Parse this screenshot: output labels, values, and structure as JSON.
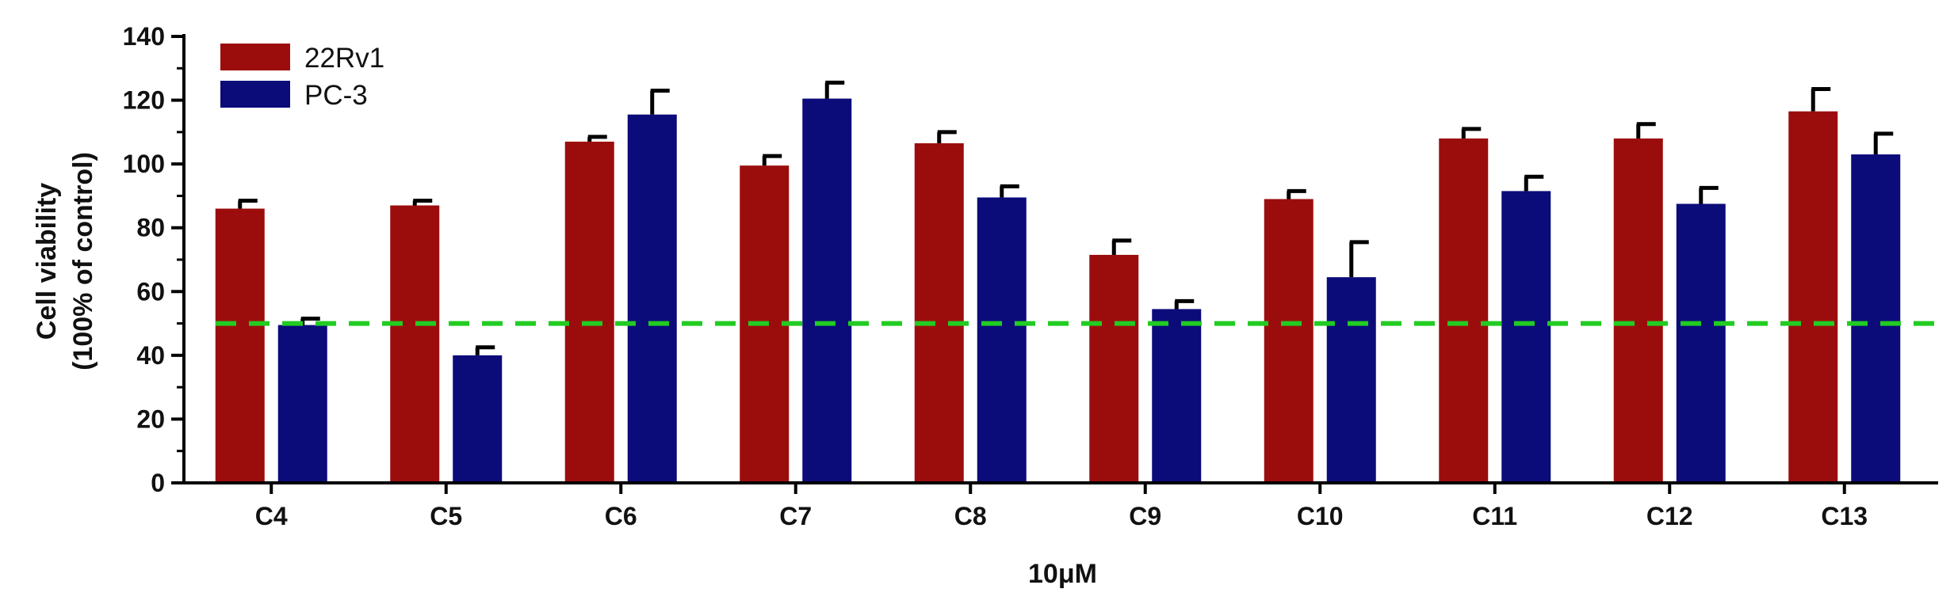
{
  "chart_data": {
    "type": "bar",
    "title": "",
    "xlabel": "10μM",
    "ylabel_lines": [
      "Cell viability",
      "(100% of control)"
    ],
    "ylim": [
      0,
      140
    ],
    "yticks": [
      0,
      20,
      40,
      60,
      80,
      100,
      120,
      140
    ],
    "categories": [
      "C4",
      "C5",
      "C6",
      "C7",
      "C8",
      "C9",
      "C10",
      "C11",
      "C12",
      "C13"
    ],
    "series": [
      {
        "name": "22Rv1",
        "color": "#9b0d0d",
        "values": [
          86,
          87,
          107,
          99.5,
          106.5,
          71.5,
          89,
          108,
          108,
          116.5
        ],
        "errors": [
          2.5,
          1.5,
          1.5,
          3,
          3.5,
          4.5,
          2.5,
          3,
          4.5,
          7
        ]
      },
      {
        "name": "PC-3",
        "color": "#0b0b7a",
        "values": [
          49.5,
          40,
          115.5,
          120.5,
          89.5,
          54.5,
          64.5,
          91.5,
          87.5,
          103
        ],
        "errors": [
          2,
          2.5,
          7.5,
          5,
          3.5,
          2.5,
          11,
          4.5,
          5,
          6.5
        ]
      }
    ],
    "reference_line": {
      "y": 50,
      "color": "#22cc22",
      "style": "dashed"
    },
    "legend": {
      "position": "top-left"
    },
    "grid": false
  }
}
